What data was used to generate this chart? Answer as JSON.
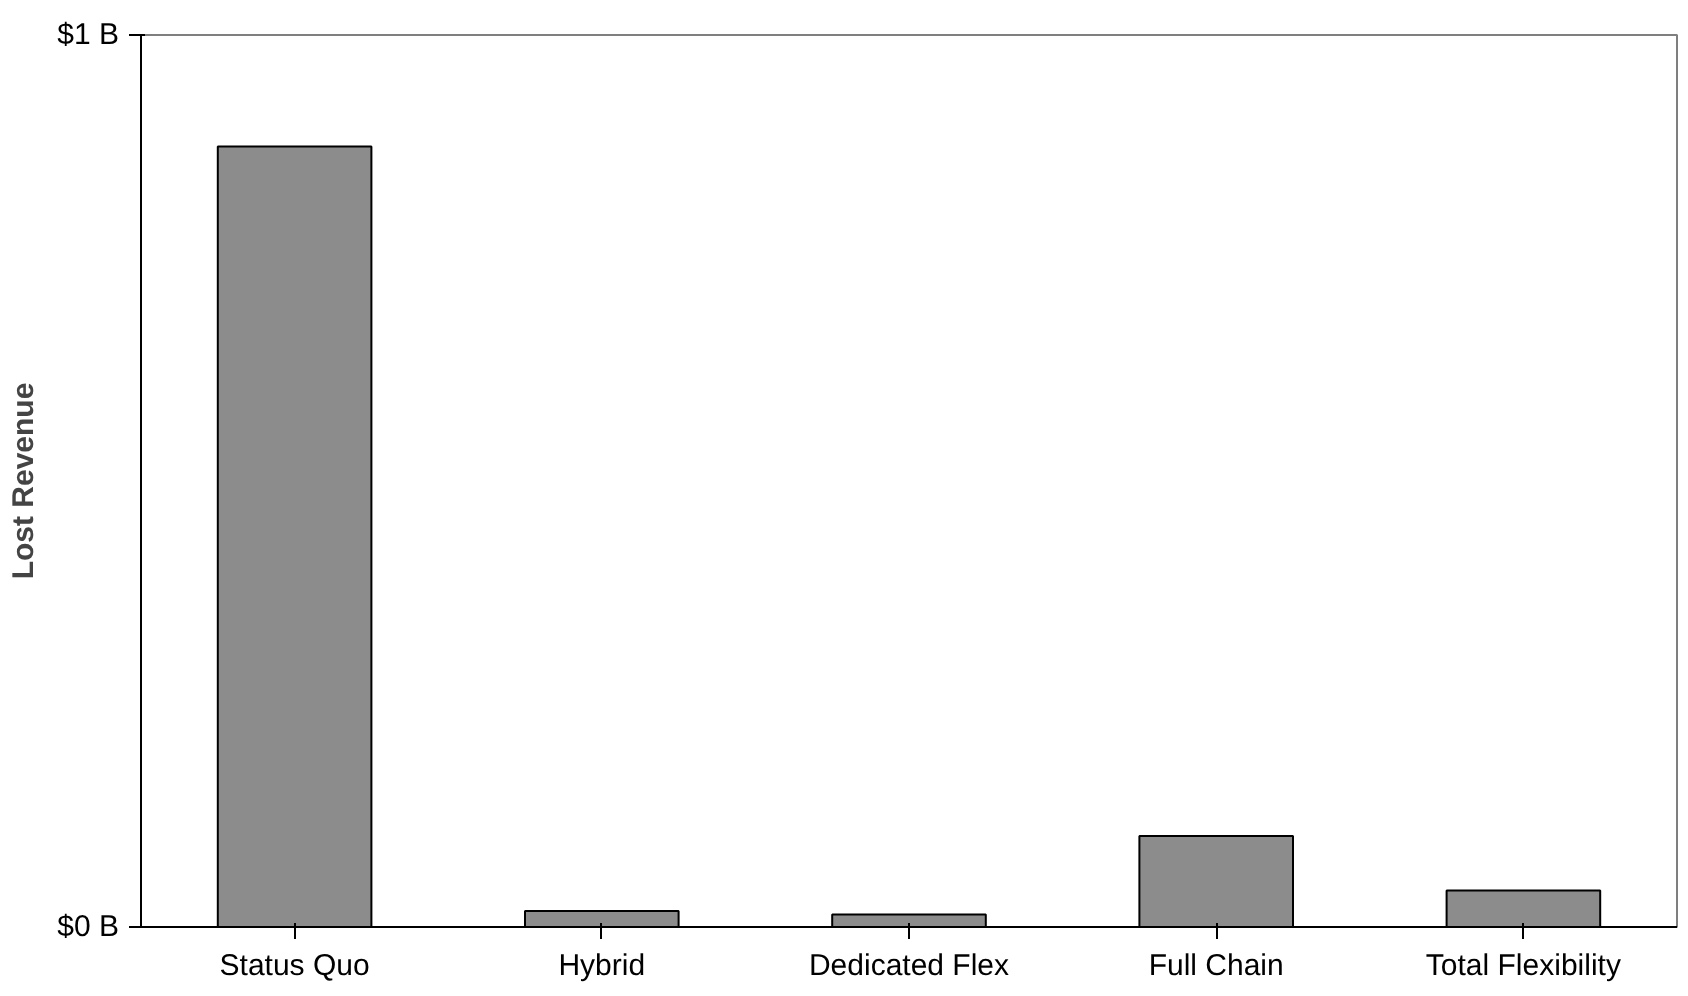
{
  "chart_data": {
    "type": "bar",
    "ylabel": "Lost Revenue",
    "categories": [
      "Status Quo",
      "Hybrid",
      "Dedicated Flex",
      "Full Chain",
      "Total Flexibility"
    ],
    "values": [
      0.875,
      0.018,
      0.014,
      0.102,
      0.041
    ],
    "color": "#8c8c8c",
    "ylim": [
      0,
      1
    ],
    "yticks": [
      {
        "value": 0,
        "label": "$0 B"
      },
      {
        "value": 1,
        "label": "$1 B"
      }
    ],
    "grid": false
  }
}
